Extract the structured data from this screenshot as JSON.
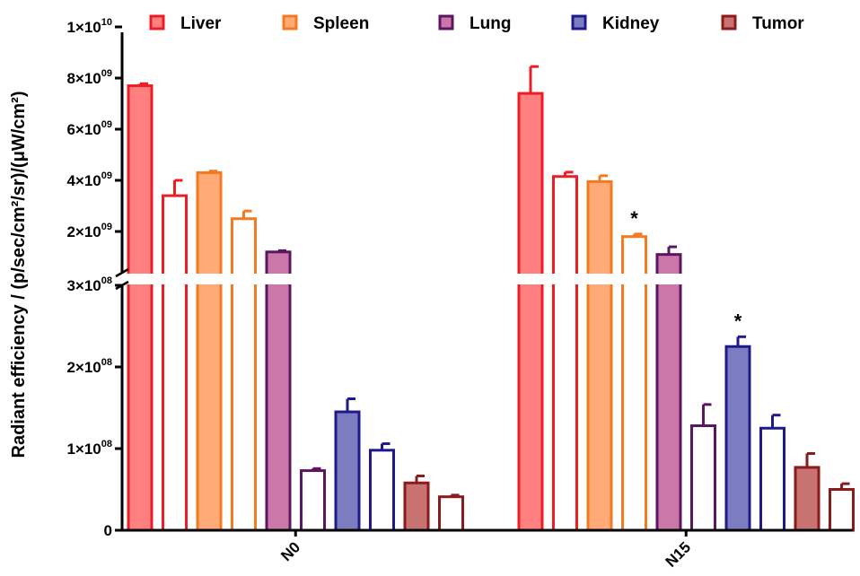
{
  "chart_data": {
    "type": "bar",
    "ylabel": "Radiant efficiency / (p/sec/cm²/sr)/(μW/cm²)",
    "y_axis_break": {
      "lower_range": [
        0,
        300000000
      ],
      "upper_range": [
        1000000000,
        10000000000
      ]
    },
    "y_ticks": {
      "lower": [
        {
          "value": 0,
          "label": "0",
          "exp": ""
        },
        {
          "value": 100000000,
          "label": "1×10",
          "exp": "08"
        },
        {
          "value": 200000000,
          "label": "2×10",
          "exp": "08"
        },
        {
          "value": 300000000,
          "label": "3×10",
          "exp": "08"
        }
      ],
      "upper": [
        {
          "value": 2000000000,
          "label": "2×10",
          "exp": "09"
        },
        {
          "value": 4000000000,
          "label": "4×10",
          "exp": "09"
        },
        {
          "value": 6000000000,
          "label": "6×10",
          "exp": "09"
        },
        {
          "value": 8000000000,
          "label": "8×10",
          "exp": "09"
        },
        {
          "value": 10000000000,
          "label": "1×10",
          "exp": "10"
        }
      ]
    },
    "groups": [
      "N0",
      "N15"
    ],
    "legend": [
      {
        "label": "Liver",
        "color": "#ee1c25",
        "fill": "#ff8080"
      },
      {
        "label": "Spleen",
        "color": "#f47920",
        "fill": "#ffaa77"
      },
      {
        "label": "Lung",
        "color": "#5a1760",
        "fill": "#cc77aa"
      },
      {
        "label": "Kidney",
        "color": "#1f1a8c",
        "fill": "#7b7dc0"
      },
      {
        "label": "Tumor",
        "color": "#8b1a1a",
        "fill": "#c97272"
      }
    ],
    "bars": [
      {
        "group": "N0",
        "organ": "Liver",
        "filled": true,
        "value": 7700000000,
        "error": 80000000
      },
      {
        "group": "N0",
        "organ": "Liver",
        "filled": false,
        "value": 3400000000,
        "error": 600000000
      },
      {
        "group": "N0",
        "organ": "Spleen",
        "filled": true,
        "value": 4300000000,
        "error": 60000000
      },
      {
        "group": "N0",
        "organ": "Spleen",
        "filled": false,
        "value": 2500000000,
        "error": 300000000
      },
      {
        "group": "N0",
        "organ": "Lung",
        "filled": true,
        "value": 1200000000,
        "error": 50000000
      },
      {
        "group": "N0",
        "organ": "Lung",
        "filled": false,
        "value": 73000000,
        "error": 2500000
      },
      {
        "group": "N0",
        "organ": "Kidney",
        "filled": true,
        "value": 145000000,
        "error": 16000000
      },
      {
        "group": "N0",
        "organ": "Kidney",
        "filled": false,
        "value": 98000000,
        "error": 8000000
      },
      {
        "group": "N0",
        "organ": "Tumor",
        "filled": true,
        "value": 58000000,
        "error": 8500000
      },
      {
        "group": "N0",
        "organ": "Tumor",
        "filled": false,
        "value": 41000000,
        "error": 2000000
      },
      {
        "group": "N15",
        "organ": "Liver",
        "filled": true,
        "value": 7400000000,
        "error": 1050000000
      },
      {
        "group": "N15",
        "organ": "Liver",
        "filled": false,
        "value": 4150000000,
        "error": 170000000
      },
      {
        "group": "N15",
        "organ": "Spleen",
        "filled": true,
        "value": 3950000000,
        "error": 230000000
      },
      {
        "group": "N15",
        "organ": "Spleen",
        "filled": false,
        "value": 1800000000,
        "error": 100000000,
        "annotation": "*"
      },
      {
        "group": "N15",
        "organ": "Lung",
        "filled": true,
        "value": 1100000000,
        "error": 300000000
      },
      {
        "group": "N15",
        "organ": "Lung",
        "filled": false,
        "value": 128000000,
        "error": 26000000
      },
      {
        "group": "N15",
        "organ": "Kidney",
        "filled": true,
        "value": 225000000,
        "error": 12000000,
        "annotation": "*"
      },
      {
        "group": "N15",
        "organ": "Kidney",
        "filled": false,
        "value": 125000000,
        "error": 16000000
      },
      {
        "group": "N15",
        "organ": "Tumor",
        "filled": true,
        "value": 77000000,
        "error": 17000000
      },
      {
        "group": "N15",
        "organ": "Tumor",
        "filled": false,
        "value": 50000000,
        "error": 7000000
      }
    ]
  }
}
